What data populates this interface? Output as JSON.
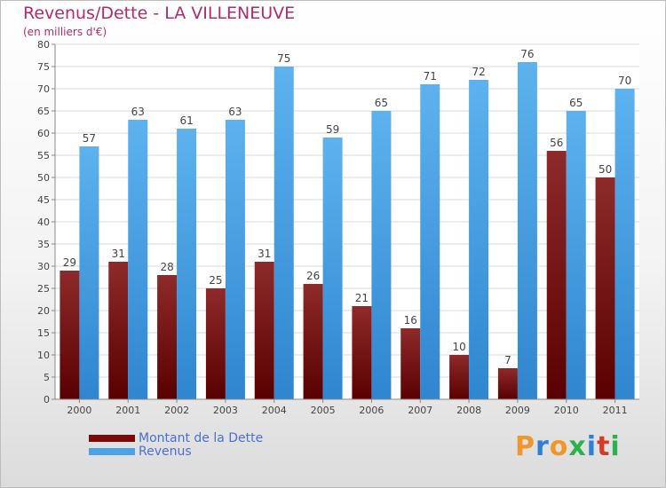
{
  "page": {
    "title": "Revenus/Dette - LA VILLENEUVE",
    "subtitle": "(en milliers d'€)"
  },
  "legend": {
    "items": [
      {
        "label": "Montant de la Dette",
        "color": "#7a0a0a"
      },
      {
        "label": "Revenus",
        "color": "#4aa3e8"
      }
    ]
  },
  "logo": {
    "text": "Proxiti",
    "colors": [
      "#f0962a",
      "#2e7fd6",
      "#f0962a",
      "#2bb24c",
      "#2e7fd6",
      "#d83a2a",
      "#2bb24c"
    ]
  },
  "chart_data": {
    "type": "bar",
    "title": "Revenus/Dette - LA VILLENEUVE",
    "subtitle": "(en milliers d'€)",
    "categories": [
      "2000",
      "2001",
      "2002",
      "2003",
      "2004",
      "2005",
      "2006",
      "2007",
      "2008",
      "2009",
      "2010",
      "2011"
    ],
    "series": [
      {
        "name": "Montant de la Dette",
        "color": "#7a0a0a",
        "values": [
          29,
          31,
          28,
          25,
          31,
          26,
          21,
          16,
          10,
          7,
          56,
          50
        ]
      },
      {
        "name": "Revenus",
        "color": "#4aa3e8",
        "values": [
          57,
          63,
          61,
          63,
          75,
          59,
          65,
          71,
          72,
          76,
          65,
          70
        ]
      }
    ],
    "ylim": [
      0,
      80
    ],
    "yticks": [
      0,
      5,
      10,
      15,
      20,
      25,
      30,
      35,
      40,
      45,
      50,
      55,
      60,
      65,
      70,
      75,
      80
    ],
    "grid": true,
    "legend_position": "bottom-left"
  }
}
